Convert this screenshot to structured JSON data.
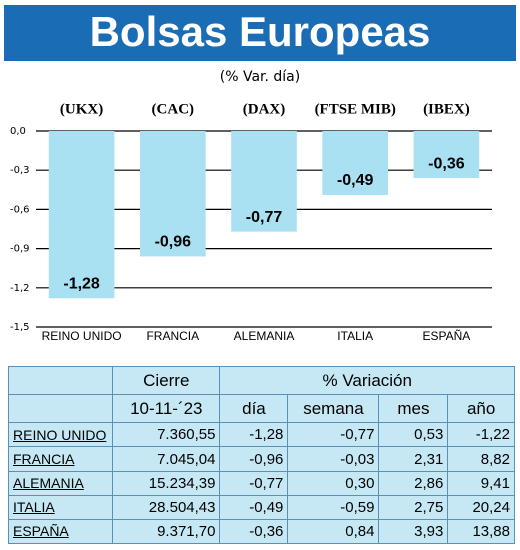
{
  "chart_data": {
    "type": "bar",
    "title": "Bolsas Europeas",
    "subtitle": "(% Var. día)",
    "tickers": [
      "(UKX)",
      "(CAC)",
      "(DAX)",
      "(FTSE MIB)",
      "(IBEX)"
    ],
    "categories": [
      "REINO UNIDO",
      "FRANCIA",
      "ALEMANIA",
      "ITALIA",
      "ESPAÑA"
    ],
    "values": [
      -1.28,
      -0.96,
      -0.77,
      -0.49,
      -0.36
    ],
    "value_labels": [
      "-1,28",
      "-0,96",
      "-0,77",
      "-0,49",
      "-0,36"
    ],
    "color": "#a9e0f2",
    "ylim": [
      -1.5,
      0
    ],
    "yticks": [
      {
        "value": 0,
        "label": "0,0"
      },
      {
        "value": -0.3,
        "label": "-0,3"
      },
      {
        "value": -0.6,
        "label": "-0,6"
      },
      {
        "value": -0.9,
        "label": "-0,9"
      },
      {
        "value": -1.2,
        "label": "-1,2"
      },
      {
        "value": -1.5,
        "label": "-1,5"
      }
    ],
    "grid": true
  },
  "table": {
    "group_headers": [
      "Cierre",
      "% Variación"
    ],
    "columns": [
      "10-11-´23",
      "día",
      "semana",
      "mes",
      "año"
    ],
    "rows": [
      [
        "REINO UNIDO",
        "7.360,55",
        "-1,28",
        "-0,77",
        "0,53",
        "-1,22"
      ],
      [
        "FRANCIA",
        "7.045,04",
        "-0,96",
        "-0,03",
        "2,31",
        "8,82"
      ],
      [
        "ALEMANIA",
        "15.234,39",
        "-0,77",
        "0,30",
        "2,86",
        "9,41"
      ],
      [
        "ITALIA",
        "28.504,43",
        "-0,49",
        "-0,59",
        "2,75",
        "20,24"
      ],
      [
        "ESPAÑA",
        "9.371,70",
        "-0,36",
        "0,84",
        "3,93",
        "13,88"
      ]
    ]
  }
}
